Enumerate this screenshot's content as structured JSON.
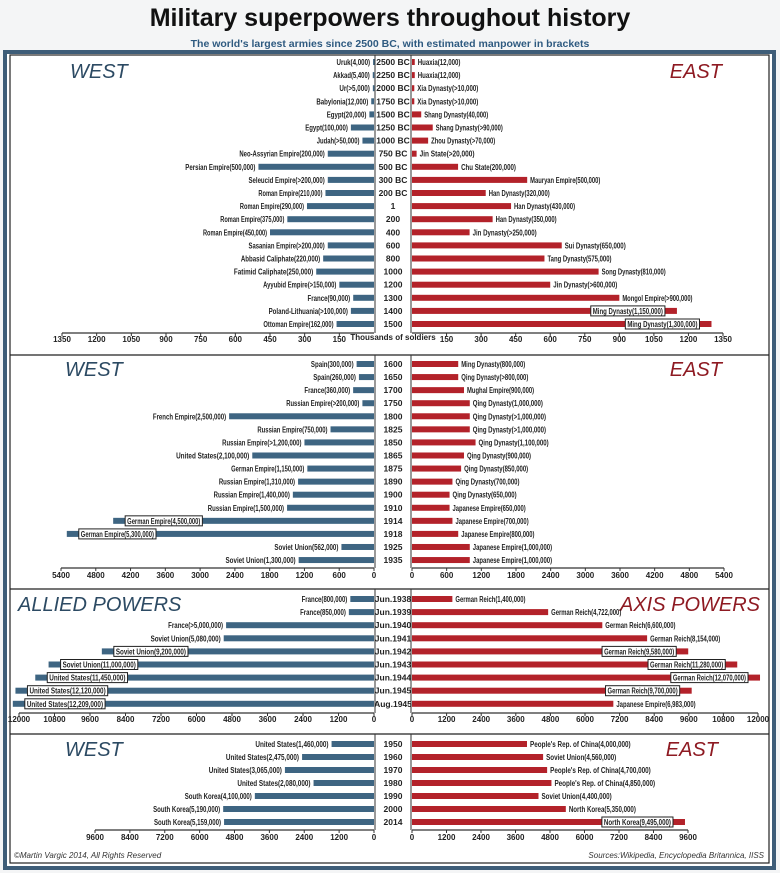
{
  "title": "Military superpowers throughout history",
  "subtitle": "The world's largest armies since 2500 BC, with estimated manpower in brackets",
  "colors": {
    "west": "#3e6582",
    "east": "#b3222a",
    "west_title": "#2c4a63",
    "east_title": "#8e1a22",
    "frame": "#3e5d78"
  },
  "footer": {
    "copyright": "©Martin Vargic 2014, All Rights Reserved",
    "sources": "Sources:Wikipedia, Encyclopedia Britannica, IISS"
  },
  "chart_data": [
    {
      "type": "bar",
      "orientation": "horizontal-diverging",
      "left_title": "WEST",
      "right_title": "EAST",
      "xlabel": "Thousands of soldiers",
      "xlim": [
        0,
        1350
      ],
      "left_ticks": [
        "1350",
        "1200",
        "1050",
        "900",
        "750",
        "600",
        "450",
        "300",
        "150"
      ],
      "right_ticks": [
        "150",
        "300",
        "450",
        "600",
        "750",
        "900",
        "1050",
        "1200",
        "1350"
      ],
      "rows": [
        {
          "period": "2500 BC",
          "west": {
            "label": "Uruk(4,000)",
            "value": 4
          },
          "east": {
            "label": "Huaxia(12,000)",
            "value": 12
          }
        },
        {
          "period": "2250 BC",
          "west": {
            "label": "Akkad(5,400)",
            "value": 5.4
          },
          "east": {
            "label": "Huaxia(12,000)",
            "value": 12
          }
        },
        {
          "period": "2000 BC",
          "west": {
            "label": "Ur(>5,000)",
            "value": 5
          },
          "east": {
            "label": "Xia Dynasty(>10,000)",
            "value": 10
          }
        },
        {
          "period": "1750 BC",
          "west": {
            "label": "Babylonia(12,000)",
            "value": 12
          },
          "east": {
            "label": "Xia Dynasty(>10,000)",
            "value": 10
          }
        },
        {
          "period": "1500 BC",
          "west": {
            "label": "Egypt(20,000)",
            "value": 20
          },
          "east": {
            "label": "Shang Dynasty(40,000)",
            "value": 40
          }
        },
        {
          "period": "1250 BC",
          "west": {
            "label": "Egypt(100,000)",
            "value": 100
          },
          "east": {
            "label": "Shang Dynasty(>90,000)",
            "value": 90
          }
        },
        {
          "period": "1000 BC",
          "west": {
            "label": "Judah(>50,000)",
            "value": 50
          },
          "east": {
            "label": "Zhou Dynasty(>70,000)",
            "value": 70
          }
        },
        {
          "period": "750 BC",
          "west": {
            "label": "Neo-Assyrian Empire(200,000)",
            "value": 200
          },
          "east": {
            "label": "Jin State(>20,000)",
            "value": 20
          }
        },
        {
          "period": "500 BC",
          "west": {
            "label": "Persian Empire(500,000)",
            "value": 500
          },
          "east": {
            "label": "Chu State(200,000)",
            "value": 200
          }
        },
        {
          "period": "300 BC",
          "west": {
            "label": "Seleucid Empire(>200,000)",
            "value": 200
          },
          "east": {
            "label": "Mauryan Empire(500,000)",
            "value": 500
          }
        },
        {
          "period": "200 BC",
          "west": {
            "label": "Roman Empire(210,000)",
            "value": 210
          },
          "east": {
            "label": "Han Dynasty(320,000)",
            "value": 320
          }
        },
        {
          "period": "1",
          "west": {
            "label": "Roman Empire(290,000)",
            "value": 290
          },
          "east": {
            "label": "Han Dynasty(430,000)",
            "value": 430
          }
        },
        {
          "period": "200",
          "west": {
            "label": "Roman Empire(375,000)",
            "value": 375
          },
          "east": {
            "label": "Han Dynasty(350,000)",
            "value": 350
          }
        },
        {
          "period": "400",
          "west": {
            "label": "Roman Empire(450,000)",
            "value": 450
          },
          "east": {
            "label": "Jin Dynasty(>250,000)",
            "value": 250
          }
        },
        {
          "period": "600",
          "west": {
            "label": "Sasanian Empire(>200,000)",
            "value": 200
          },
          "east": {
            "label": "Sui Dynasty(650,000)",
            "value": 650
          }
        },
        {
          "period": "800",
          "west": {
            "label": "Abbasid Caliphate(220,000)",
            "value": 220
          },
          "east": {
            "label": "Tang Dynasty(575,000)",
            "value": 575
          }
        },
        {
          "period": "1000",
          "west": {
            "label": "Fatimid Caliphate(250,000)",
            "value": 250
          },
          "east": {
            "label": "Song Dynasty(810,000)",
            "value": 810
          }
        },
        {
          "period": "1200",
          "west": {
            "label": "Ayyubid Empire(>150,000)",
            "value": 150
          },
          "east": {
            "label": "Jin Dynasty(>600,000)",
            "value": 600
          }
        },
        {
          "period": "1300",
          "west": {
            "label": "France(90,000)",
            "value": 90
          },
          "east": {
            "label": "Mongol Empire(>900,000)",
            "value": 900
          }
        },
        {
          "period": "1400",
          "west": {
            "label": "Poland-Lithuania(>100,000)",
            "value": 100
          },
          "east": {
            "label": "Ming Dynasty(1,150,000)",
            "value": 1150,
            "boxed": true
          }
        },
        {
          "period": "1500",
          "west": {
            "label": "Ottoman Empire(162,000)",
            "value": 162
          },
          "east": {
            "label": "Ming Dynasty(1,300,000)",
            "value": 1300,
            "boxed": true
          }
        }
      ]
    },
    {
      "type": "bar",
      "orientation": "horizontal-diverging",
      "left_title": "WEST",
      "right_title": "EAST",
      "xlim": [
        0,
        5400
      ],
      "left_ticks": [
        "5400",
        "4800",
        "4200",
        "3600",
        "3000",
        "2400",
        "1800",
        "1200",
        "600",
        "0"
      ],
      "right_ticks": [
        "0",
        "600",
        "1200",
        "1800",
        "2400",
        "3000",
        "3600",
        "4200",
        "4800",
        "5400"
      ],
      "rows": [
        {
          "period": "1600",
          "west": {
            "label": "Spain(300,000)",
            "value": 300
          },
          "east": {
            "label": "Ming Dynasty(800,000)",
            "value": 800
          }
        },
        {
          "period": "1650",
          "west": {
            "label": "Spain(260,000)",
            "value": 260
          },
          "east": {
            "label": "Qing Dynasty(>800,000)",
            "value": 800
          }
        },
        {
          "period": "1700",
          "west": {
            "label": "France(360,000)",
            "value": 360
          },
          "east": {
            "label": "Mughal Empire(900,000)",
            "value": 900
          }
        },
        {
          "period": "1750",
          "west": {
            "label": "Russian Empire(>200,000)",
            "value": 200
          },
          "east": {
            "label": "Qing Dynasty(1,000,000)",
            "value": 1000
          }
        },
        {
          "period": "1800",
          "west": {
            "label": "French Empire(2,500,000)",
            "value": 2500
          },
          "east": {
            "label": "Qing Dynasty(>1,000,000)",
            "value": 1000
          }
        },
        {
          "period": "1825",
          "west": {
            "label": "Russian Empire(750,000)",
            "value": 750
          },
          "east": {
            "label": "Qing Dynasty(>1,000,000)",
            "value": 1000
          }
        },
        {
          "period": "1850",
          "west": {
            "label": "Russian Empire(>1,200,000)",
            "value": 1200
          },
          "east": {
            "label": "Qing Dynasty(1,100,000)",
            "value": 1100
          }
        },
        {
          "period": "1865",
          "west": {
            "label": "United States(2,100,000)",
            "value": 2100
          },
          "east": {
            "label": "Qing Dynasty(900,000)",
            "value": 900
          }
        },
        {
          "period": "1875",
          "west": {
            "label": "German Empire(1,150,000)",
            "value": 1150
          },
          "east": {
            "label": "Qing Dynasty(850,000)",
            "value": 850
          }
        },
        {
          "period": "1890",
          "west": {
            "label": "Russian Empire(1,310,000)",
            "value": 1310
          },
          "east": {
            "label": "Qing Dynasty(700,000)",
            "value": 700
          }
        },
        {
          "period": "1900",
          "west": {
            "label": "Russian Empire(1,400,000)",
            "value": 1400
          },
          "east": {
            "label": "Qing Dynasty(650,000)",
            "value": 650
          }
        },
        {
          "period": "1910",
          "west": {
            "label": "Russian Empire(1,500,000)",
            "value": 1500
          },
          "east": {
            "label": "Japanese Empire(650,000)",
            "value": 650
          }
        },
        {
          "period": "1914",
          "west": {
            "label": "German Empire(4,500,000)",
            "value": 4500,
            "boxed": true
          },
          "east": {
            "label": "Japanese Empire(700,000)",
            "value": 700
          }
        },
        {
          "period": "1918",
          "west": {
            "label": "German Empire(5,300,000)",
            "value": 5300,
            "boxed": true
          },
          "east": {
            "label": "Japanese Empire(800,000)",
            "value": 800
          }
        },
        {
          "period": "1925",
          "west": {
            "label": "Soviet Union(562,000)",
            "value": 562
          },
          "east": {
            "label": "Japanese Empire(1,000,000)",
            "value": 1000
          }
        },
        {
          "period": "1935",
          "west": {
            "label": "Soviet Union(1,300,000)",
            "value": 1300
          },
          "east": {
            "label": "Japanese Empire(1,000,000)",
            "value": 1000
          }
        }
      ]
    },
    {
      "type": "bar",
      "orientation": "horizontal-diverging",
      "left_title": "ALLIED POWERS",
      "right_title": "AXIS POWERS",
      "xlim": [
        0,
        12000
      ],
      "left_ticks": [
        "12000",
        "10800",
        "9600",
        "8400",
        "7200",
        "6000",
        "4800",
        "3600",
        "2400",
        "1200",
        "0"
      ],
      "right_ticks": [
        "0",
        "1200",
        "2400",
        "3600",
        "4800",
        "6000",
        "7200",
        "8400",
        "9600",
        "10800",
        "12000"
      ],
      "rows": [
        {
          "period": "Jun.1938",
          "west": {
            "label": "France(800,000)",
            "value": 800
          },
          "east": {
            "label": "German Reich(1,400,000)",
            "value": 1400
          }
        },
        {
          "period": "Jun.1939",
          "west": {
            "label": "France(850,000)",
            "value": 850
          },
          "east": {
            "label": "German Reich(4,722,000)",
            "value": 4722
          }
        },
        {
          "period": "Jun.1940",
          "west": {
            "label": "France(>5,000,000)",
            "value": 5000
          },
          "east": {
            "label": "German Reich(6,600,000)",
            "value": 6600
          }
        },
        {
          "period": "Jun.1941",
          "west": {
            "label": "Soviet Union(5,080,000)",
            "value": 5080
          },
          "east": {
            "label": "German Reich(8,154,000)",
            "value": 8154
          }
        },
        {
          "period": "Jun.1942",
          "west": {
            "label": "Soviet Union(9,200,000)",
            "value": 9200,
            "boxed": true
          },
          "east": {
            "label": "German Reich(9,580,000)",
            "value": 9580,
            "boxed": true
          }
        },
        {
          "period": "Jun.1943",
          "west": {
            "label": "Soviet Union(11,000,000)",
            "value": 11000,
            "boxed": true
          },
          "east": {
            "label": "German Reich(11,280,000)",
            "value": 11280,
            "boxed": true
          }
        },
        {
          "period": "Jun.1944",
          "west": {
            "label": "United States(11,450,000)",
            "value": 11450,
            "boxed": true
          },
          "east": {
            "label": "German Reich(12,070,000)",
            "value": 12070,
            "boxed": true
          }
        },
        {
          "period": "Jun.1945",
          "west": {
            "label": "United States(12,120,000)",
            "value": 12120,
            "boxed": true
          },
          "east": {
            "label": "German Reich(9,700,000)",
            "value": 9700,
            "boxed": true
          }
        },
        {
          "period": "Aug.1945",
          "west": {
            "label": "United States(12,209,000)",
            "value": 12209,
            "boxed": true
          },
          "east": {
            "label": "Japanese Empire(6,983,000)",
            "value": 6983
          }
        }
      ]
    },
    {
      "type": "bar",
      "orientation": "horizontal-diverging",
      "left_title": "WEST",
      "right_title": "EAST",
      "xlim": [
        0,
        9600
      ],
      "left_ticks": [
        "9600",
        "8400",
        "7200",
        "6000",
        "4800",
        "3600",
        "2400",
        "1200",
        "0"
      ],
      "right_ticks": [
        "0",
        "1200",
        "2400",
        "3600",
        "4800",
        "6000",
        "7200",
        "8400",
        "9600"
      ],
      "rows": [
        {
          "period": "1950",
          "west": {
            "label": "United States(1,460,000)",
            "value": 1460
          },
          "east": {
            "label": "People's Rep. of China(4,000,000)",
            "value": 4000
          }
        },
        {
          "period": "1960",
          "west": {
            "label": "United States(2,475,000)",
            "value": 2475
          },
          "east": {
            "label": "Soviet Union(4,560,000)",
            "value": 4560
          }
        },
        {
          "period": "1970",
          "west": {
            "label": "United States(3,065,000)",
            "value": 3065
          },
          "east": {
            "label": "People's Rep. of China(4,700,000)",
            "value": 4700
          }
        },
        {
          "period": "1980",
          "west": {
            "label": "United States(2,080,000)",
            "value": 2080
          },
          "east": {
            "label": "People's Rep. of China(4,850,000)",
            "value": 4850
          }
        },
        {
          "period": "1990",
          "west": {
            "label": "South Korea(4,100,000)",
            "value": 4100
          },
          "east": {
            "label": "Soviet Union(4,400,000)",
            "value": 4400
          }
        },
        {
          "period": "2000",
          "west": {
            "label": "South Korea(5,190,000)",
            "value": 5190
          },
          "east": {
            "label": "North Korea(5,350,000)",
            "value": 5350
          }
        },
        {
          "period": "2014",
          "west": {
            "label": "South Korea(5,159,000)",
            "value": 5159
          },
          "east": {
            "label": "North Korea(9,495,000)",
            "value": 9495,
            "boxed": true
          }
        }
      ]
    }
  ]
}
